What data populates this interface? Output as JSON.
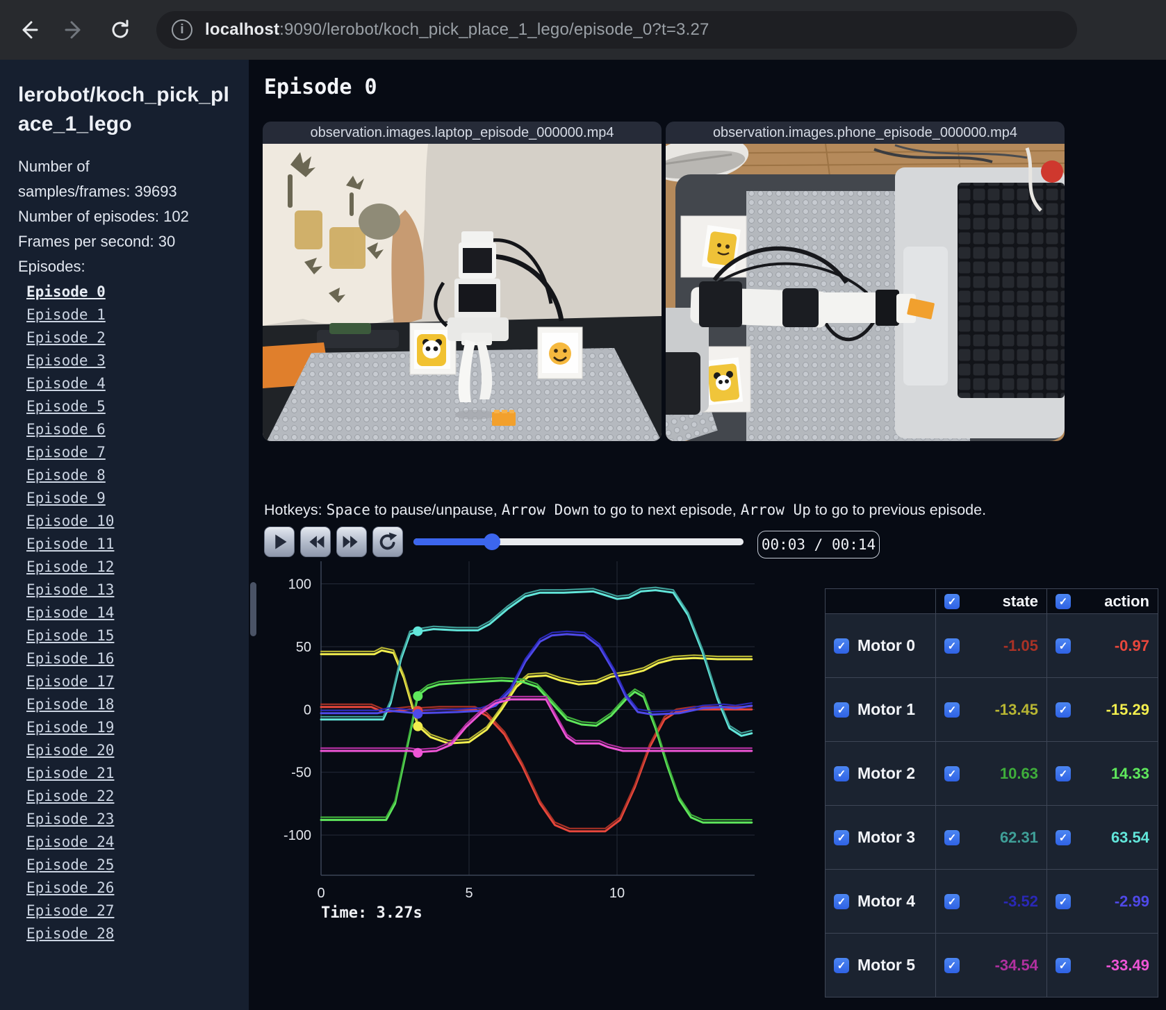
{
  "browser": {
    "url_host": "localhost",
    "url_rest": ":9090/lerobot/koch_pick_place_1_lego/episode_0?t=3.27",
    "info_icon": "i"
  },
  "sidebar": {
    "title_line1": "lerobot/koch_pick_pl",
    "title_line2": "ace_1_lego",
    "info_lines": [
      "Number of",
      "samples/frames: 39693",
      "Number of episodes: 102",
      "Frames per second: 30",
      "Episodes:"
    ],
    "episodes": [
      "Episode 0",
      "Episode 1",
      "Episode 2",
      "Episode 3",
      "Episode 4",
      "Episode 5",
      "Episode 6",
      "Episode 7",
      "Episode 8",
      "Episode 9",
      "Episode 10",
      "Episode 11",
      "Episode 12",
      "Episode 13",
      "Episode 14",
      "Episode 15",
      "Episode 16",
      "Episode 17",
      "Episode 18",
      "Episode 19",
      "Episode 20",
      "Episode 21",
      "Episode 22",
      "Episode 23",
      "Episode 24",
      "Episode 25",
      "Episode 26",
      "Episode 27",
      "Episode 28"
    ],
    "active_index": 0
  },
  "main": {
    "heading": "Episode 0",
    "videos": [
      {
        "label": "observation.images.laptop_episode_000000.mp4"
      },
      {
        "label": "observation.images.phone_episode_000000.mp4"
      }
    ],
    "hotkeys_segments": [
      {
        "text": "Hotkeys: ",
        "mono": false
      },
      {
        "text": "Space",
        "mono": true
      },
      {
        "text": " to pause/unpause, ",
        "mono": false
      },
      {
        "text": "Arrow Down",
        "mono": true
      },
      {
        "text": " to go to next episode, ",
        "mono": false
      },
      {
        "text": "Arrow Up",
        "mono": true
      },
      {
        "text": " to go to previous episode.",
        "mono": false
      }
    ],
    "player": {
      "time_display": "00:03 / 00:14",
      "progress_pct": 23.8
    }
  },
  "chart_data": {
    "type": "line",
    "title": "",
    "xlabel": "",
    "ylabel": "",
    "x_ticks": [
      0,
      5,
      10
    ],
    "y_ticks": [
      100,
      50,
      0,
      -50,
      -100
    ],
    "x_range": [
      0,
      14.6
    ],
    "y_range": [
      -132,
      118
    ],
    "grid": true,
    "legend_position": "table-right",
    "current_time": 3.27,
    "time_label": "Time: 3.27s",
    "series": [
      {
        "name": "Motor 0",
        "state": -1.05,
        "action": -0.97,
        "state_str": "-1.05",
        "action_str": "-0.97",
        "state_color": "#a93226",
        "action_color": "#e8473c",
        "points": [
          [
            0,
            2
          ],
          [
            1.7,
            2
          ],
          [
            2.1,
            -2
          ],
          [
            2.6,
            -1
          ],
          [
            3.0,
            0
          ],
          [
            3.27,
            -1
          ],
          [
            4.0,
            0
          ],
          [
            5.2,
            0
          ],
          [
            5.6,
            -5
          ],
          [
            6.2,
            -20
          ],
          [
            6.8,
            -45
          ],
          [
            7.4,
            -75
          ],
          [
            7.9,
            -92
          ],
          [
            8.4,
            -97
          ],
          [
            9.6,
            -97
          ],
          [
            10.1,
            -88
          ],
          [
            10.6,
            -62
          ],
          [
            11.1,
            -30
          ],
          [
            11.6,
            -8
          ],
          [
            12.0,
            -2
          ],
          [
            12.6,
            0
          ],
          [
            14.55,
            0
          ]
        ]
      },
      {
        "name": "Motor 1",
        "state": -13.45,
        "action": -15.29,
        "state_str": "-13.45",
        "action_str": "-15.29",
        "state_color": "#b8b633",
        "action_color": "#f2ee4e",
        "points": [
          [
            0,
            44
          ],
          [
            1.8,
            44
          ],
          [
            2.05,
            47
          ],
          [
            2.45,
            45
          ],
          [
            2.8,
            25
          ],
          [
            3.27,
            -13
          ],
          [
            3.7,
            -22
          ],
          [
            4.3,
            -27
          ],
          [
            5.0,
            -26
          ],
          [
            5.6,
            -16
          ],
          [
            6.1,
            0
          ],
          [
            6.6,
            18
          ],
          [
            7.0,
            26
          ],
          [
            7.6,
            27
          ],
          [
            8.1,
            23
          ],
          [
            8.7,
            20
          ],
          [
            9.3,
            21
          ],
          [
            9.8,
            26
          ],
          [
            10.4,
            28
          ],
          [
            10.9,
            31
          ],
          [
            11.4,
            37
          ],
          [
            11.9,
            40
          ],
          [
            12.6,
            41
          ],
          [
            13.4,
            40
          ],
          [
            14.55,
            40
          ]
        ]
      },
      {
        "name": "Motor 2",
        "state": 10.63,
        "action": 14.33,
        "state_str": "10.63",
        "action_str": "14.33",
        "state_color": "#3fae3b",
        "action_color": "#5fe85c",
        "points": [
          [
            0,
            -88
          ],
          [
            2.2,
            -88
          ],
          [
            2.5,
            -75
          ],
          [
            3.0,
            -20
          ],
          [
            3.27,
            11
          ],
          [
            3.6,
            17
          ],
          [
            4.0,
            20
          ],
          [
            4.6,
            21
          ],
          [
            5.3,
            22
          ],
          [
            6.1,
            23
          ],
          [
            6.8,
            22
          ],
          [
            7.3,
            18
          ],
          [
            7.8,
            5
          ],
          [
            8.3,
            -8
          ],
          [
            8.8,
            -12
          ],
          [
            9.3,
            -13
          ],
          [
            9.8,
            -5
          ],
          [
            10.3,
            8
          ],
          [
            10.6,
            14
          ],
          [
            10.9,
            10
          ],
          [
            11.3,
            -15
          ],
          [
            11.7,
            -45
          ],
          [
            12.1,
            -72
          ],
          [
            12.5,
            -86
          ],
          [
            12.9,
            -90
          ],
          [
            14.55,
            -90
          ]
        ]
      },
      {
        "name": "Motor 3",
        "state": 62.31,
        "action": 63.54,
        "state_str": "62.31",
        "action_str": "63.54",
        "state_color": "#3f9f98",
        "action_color": "#62e6da",
        "points": [
          [
            0,
            -8
          ],
          [
            2.1,
            -8
          ],
          [
            2.35,
            5
          ],
          [
            2.7,
            40
          ],
          [
            3.0,
            60
          ],
          [
            3.27,
            62
          ],
          [
            3.8,
            64
          ],
          [
            4.6,
            63
          ],
          [
            5.3,
            63
          ],
          [
            5.7,
            68
          ],
          [
            6.3,
            80
          ],
          [
            6.9,
            90
          ],
          [
            7.4,
            93
          ],
          [
            8.2,
            93
          ],
          [
            9.2,
            94
          ],
          [
            9.6,
            91
          ],
          [
            10.0,
            88
          ],
          [
            10.4,
            89
          ],
          [
            10.8,
            94
          ],
          [
            11.3,
            95
          ],
          [
            11.9,
            93
          ],
          [
            12.4,
            75
          ],
          [
            12.9,
            45
          ],
          [
            13.4,
            8
          ],
          [
            13.8,
            -15
          ],
          [
            14.2,
            -21
          ],
          [
            14.55,
            -19
          ]
        ]
      },
      {
        "name": "Motor 4",
        "state": -3.52,
        "action": -2.99,
        "state_str": "-3.52",
        "action_str": "-2.99",
        "state_color": "#2a28b8",
        "action_color": "#4f49e8",
        "points": [
          [
            0,
            -3
          ],
          [
            1.9,
            -3
          ],
          [
            2.3,
            -1
          ],
          [
            3.27,
            -3
          ],
          [
            4.6,
            -2
          ],
          [
            5.4,
            -1
          ],
          [
            5.9,
            3
          ],
          [
            6.4,
            15
          ],
          [
            6.9,
            38
          ],
          [
            7.4,
            54
          ],
          [
            7.8,
            59
          ],
          [
            8.3,
            60
          ],
          [
            8.9,
            59
          ],
          [
            9.4,
            50
          ],
          [
            9.9,
            30
          ],
          [
            10.3,
            10
          ],
          [
            10.7,
            -2
          ],
          [
            11.2,
            -4
          ],
          [
            12.1,
            -3
          ],
          [
            12.9,
            1
          ],
          [
            13.6,
            2
          ],
          [
            14.0,
            1
          ],
          [
            14.55,
            3
          ]
        ]
      },
      {
        "name": "Motor 5",
        "state": -34.54,
        "action": -33.49,
        "state_str": "-34.54",
        "action_str": "-33.49",
        "state_color": "#b1309f",
        "action_color": "#ee55d6",
        "points": [
          [
            0,
            -33
          ],
          [
            3.0,
            -33
          ],
          [
            3.27,
            -34
          ],
          [
            3.9,
            -33
          ],
          [
            4.4,
            -28
          ],
          [
            4.9,
            -14
          ],
          [
            5.4,
            -3
          ],
          [
            5.9,
            5
          ],
          [
            6.4,
            8
          ],
          [
            7.0,
            8
          ],
          [
            7.6,
            8
          ],
          [
            7.9,
            -5
          ],
          [
            8.3,
            -22
          ],
          [
            8.6,
            -27
          ],
          [
            9.4,
            -27
          ],
          [
            9.7,
            -30
          ],
          [
            10.2,
            -33
          ],
          [
            10.6,
            -33
          ],
          [
            14.55,
            -33
          ]
        ]
      }
    ]
  },
  "table": {
    "columns": [
      "state",
      "action"
    ]
  }
}
